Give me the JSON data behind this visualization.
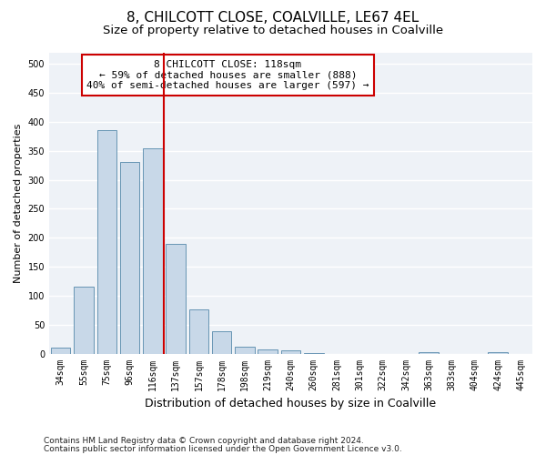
{
  "title_line1": "8, CHILCOTT CLOSE, COALVILLE, LE67 4EL",
  "title_line2": "Size of property relative to detached houses in Coalville",
  "xlabel": "Distribution of detached houses by size in Coalville",
  "ylabel": "Number of detached properties",
  "categories": [
    "34sqm",
    "55sqm",
    "75sqm",
    "96sqm",
    "116sqm",
    "137sqm",
    "157sqm",
    "178sqm",
    "198sqm",
    "219sqm",
    "240sqm",
    "260sqm",
    "281sqm",
    "301sqm",
    "322sqm",
    "342sqm",
    "363sqm",
    "383sqm",
    "404sqm",
    "424sqm",
    "445sqm"
  ],
  "values": [
    10,
    115,
    385,
    330,
    355,
    190,
    77,
    38,
    12,
    7,
    5,
    1,
    0,
    0,
    0,
    0,
    3,
    0,
    0,
    3,
    0
  ],
  "bar_color": "#c8d8e8",
  "bar_edge_color": "#5588aa",
  "vline_color": "#cc0000",
  "vline_x": 4.5,
  "ylim": [
    0,
    520
  ],
  "yticks": [
    0,
    50,
    100,
    150,
    200,
    250,
    300,
    350,
    400,
    450,
    500
  ],
  "annotation_text": "8 CHILCOTT CLOSE: 118sqm\n← 59% of detached houses are smaller (888)\n40% of semi-detached houses are larger (597) →",
  "annotation_box_color": "#cc0000",
  "footnote1": "Contains HM Land Registry data © Crown copyright and database right 2024.",
  "footnote2": "Contains public sector information licensed under the Open Government Licence v3.0.",
  "background_color": "#eef2f7",
  "grid_color": "#ffffff",
  "title1_fontsize": 11,
  "title2_fontsize": 9.5,
  "xlabel_fontsize": 9,
  "ylabel_fontsize": 8,
  "tick_fontsize": 7,
  "footnote_fontsize": 6.5
}
